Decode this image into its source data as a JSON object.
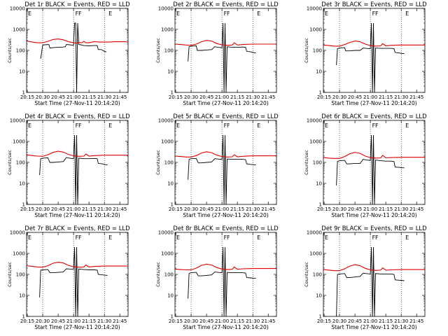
{
  "colors": {
    "events": "#000000",
    "lld": "#e00000",
    "axis": "#000000"
  },
  "axes": {
    "xticks": [
      "20:15",
      "20:30",
      "20:45",
      "21:00",
      "21:15",
      "21:30",
      "21:45"
    ],
    "yticks": [
      "1",
      "10",
      "100",
      "1000",
      "10000"
    ],
    "ylabel": "Counts/sec",
    "xlabel": "Start Time (27-Nov-11 20:14:20)"
  },
  "flags": {
    "left": "E",
    "mid1": "F",
    "mid2": "F",
    "right": "E"
  },
  "chart_data": [
    {
      "type": "line",
      "title": "Det 1r BLACK = Events, RED = LLD",
      "xlim": [
        "20:14:20",
        "21:53:00"
      ],
      "ylim": [
        1,
        10000
      ],
      "yscale": "log",
      "series": [
        {
          "name": "Events",
          "x": [
            "20:14:20",
            "20:20",
            "20:27",
            "20:28",
            "20:30",
            "20:32",
            "20:36",
            "20:37",
            "20:40",
            "20:45",
            "20:50",
            "20:52",
            "20:53",
            "20:56",
            "20:58",
            "21:00",
            "21:01",
            "21:02",
            "21:03",
            "21:04",
            "21:05",
            "21:07",
            "21:10",
            "21:15",
            "21:20",
            "21:23",
            "21:24",
            "21:27",
            "21:30",
            "21:32",
            "21:34"
          ],
          "values": [
            null,
            null,
            null,
            40,
            180,
            185,
            190,
            130,
            135,
            140,
            145,
            150,
            190,
            185,
            180,
            175,
            2000,
            2000,
            1,
            2000,
            190,
            185,
            170,
            165,
            170,
            170,
            110,
            110,
            90,
            85,
            null
          ]
        },
        {
          "name": "LLD",
          "x": [
            "20:14:20",
            "20:20",
            "20:25",
            "20:30",
            "20:35",
            "20:40",
            "20:45",
            "20:50",
            "20:55",
            "21:00",
            "21:03",
            "21:05",
            "21:08",
            "21:10",
            "21:12",
            "21:15",
            "21:20",
            "21:25",
            "21:30",
            "21:35",
            "21:40",
            "21:45",
            "21:50",
            "21:53"
          ],
          "values": [
            280,
            250,
            230,
            230,
            270,
            330,
            350,
            320,
            260,
            230,
            220,
            240,
            230,
            270,
            230,
            230,
            260,
            250,
            250,
            250,
            260,
            260,
            260,
            250
          ]
        }
      ]
    },
    {
      "type": "line",
      "title": "Det 2r BLACK = Events, RED = LLD",
      "xlim": [
        "20:14:20",
        "21:53:00"
      ],
      "ylim": [
        1,
        10000
      ],
      "yscale": "log",
      "series": [
        {
          "name": "Events",
          "x": [
            "20:27",
            "20:28",
            "20:30",
            "20:35",
            "20:36",
            "20:40",
            "20:45",
            "20:50",
            "20:53",
            "20:56",
            "21:00",
            "21:01",
            "21:02",
            "21:03",
            "21:04",
            "21:05",
            "21:10",
            "21:15",
            "21:20",
            "21:23",
            "21:24",
            "21:28",
            "21:30",
            "21:33"
          ],
          "values": [
            30,
            150,
            160,
            165,
            100,
            100,
            105,
            110,
            150,
            140,
            135,
            2000,
            1,
            2000,
            1,
            150,
            140,
            140,
            145,
            140,
            90,
            85,
            80,
            75
          ]
        },
        {
          "name": "LLD",
          "x": [
            "20:14:20",
            "20:20",
            "20:25",
            "20:30",
            "20:35",
            "20:40",
            "20:45",
            "20:50",
            "20:55",
            "21:00",
            "21:05",
            "21:10",
            "21:12",
            "21:15",
            "21:20",
            "21:30",
            "21:40",
            "21:53"
          ],
          "values": [
            200,
            190,
            180,
            175,
            200,
            260,
            300,
            280,
            210,
            185,
            175,
            180,
            230,
            180,
            190,
            200,
            200,
            200
          ]
        }
      ]
    },
    {
      "type": "line",
      "title": "Det 3r BLACK = Events, RED = LLD",
      "xlim": [
        "20:14:20",
        "21:53:00"
      ],
      "ylim": [
        1,
        10000
      ],
      "yscale": "log",
      "series": [
        {
          "name": "Events",
          "x": [
            "20:27",
            "20:28",
            "20:30",
            "20:35",
            "20:36",
            "20:40",
            "20:45",
            "20:50",
            "20:53",
            "20:56",
            "21:00",
            "21:01",
            "21:02",
            "21:03",
            "21:04",
            "21:05",
            "21:10",
            "21:15",
            "21:20",
            "21:23",
            "21:24",
            "21:28",
            "21:30",
            "21:33"
          ],
          "values": [
            20,
            120,
            130,
            135,
            95,
            95,
            100,
            100,
            130,
            125,
            120,
            2000,
            1,
            2000,
            1,
            130,
            125,
            125,
            125,
            120,
            80,
            75,
            72,
            70
          ]
        },
        {
          "name": "LLD",
          "x": [
            "20:14:20",
            "20:20",
            "20:25",
            "20:30",
            "20:35",
            "20:40",
            "20:45",
            "20:50",
            "20:55",
            "21:00",
            "21:05",
            "21:10",
            "21:12",
            "21:15",
            "21:20",
            "21:30",
            "21:40",
            "21:53"
          ],
          "values": [
            180,
            170,
            160,
            160,
            190,
            240,
            280,
            260,
            200,
            170,
            160,
            165,
            210,
            165,
            175,
            180,
            180,
            180
          ]
        }
      ]
    },
    {
      "type": "line",
      "title": "Det 4r BLACK = Events, RED = LLD",
      "xlim": [
        "20:14:20",
        "21:53:00"
      ],
      "ylim": [
        1,
        10000
      ],
      "yscale": "log",
      "series": [
        {
          "name": "Events",
          "x": [
            "20:27",
            "20:28",
            "20:30",
            "20:35",
            "20:37",
            "20:40",
            "20:45",
            "20:50",
            "20:53",
            "20:56",
            "21:00",
            "21:01",
            "21:02",
            "21:03",
            "21:04",
            "21:05",
            "21:10",
            "21:15",
            "21:20",
            "21:23",
            "21:24",
            "21:28",
            "21:30",
            "21:33"
          ],
          "values": [
            25,
            150,
            160,
            165,
            100,
            100,
            105,
            110,
            170,
            160,
            150,
            2000,
            1,
            2000,
            1,
            160,
            150,
            150,
            155,
            150,
            90,
            85,
            80,
            75
          ]
        },
        {
          "name": "LLD",
          "x": [
            "20:14:20",
            "20:20",
            "20:25",
            "20:30",
            "20:35",
            "20:40",
            "20:45",
            "20:50",
            "20:55",
            "21:00",
            "21:05",
            "21:10",
            "21:12",
            "21:15",
            "21:20",
            "21:30",
            "21:40",
            "21:53"
          ],
          "values": [
            230,
            210,
            200,
            195,
            230,
            300,
            340,
            310,
            240,
            205,
            195,
            200,
            250,
            200,
            210,
            220,
            220,
            220
          ]
        }
      ]
    },
    {
      "type": "line",
      "title": "Det 5r BLACK = Events, RED = LLD",
      "xlim": [
        "20:14:20",
        "21:53:00"
      ],
      "ylim": [
        1,
        10000
      ],
      "yscale": "log",
      "series": [
        {
          "name": "Events",
          "x": [
            "20:27",
            "20:28",
            "20:30",
            "20:35",
            "20:37",
            "20:40",
            "20:45",
            "20:50",
            "20:53",
            "20:56",
            "21:00",
            "21:01",
            "21:02",
            "21:03",
            "21:04",
            "21:05",
            "21:10",
            "21:15",
            "21:20",
            "21:23",
            "21:24",
            "21:28",
            "21:30",
            "21:33"
          ],
          "values": [
            15,
            140,
            150,
            155,
            95,
            95,
            100,
            105,
            150,
            145,
            140,
            2000,
            1,
            2000,
            1,
            145,
            140,
            140,
            140,
            135,
            85,
            80,
            78,
            75
          ]
        },
        {
          "name": "LLD",
          "x": [
            "20:14:20",
            "20:20",
            "20:25",
            "20:30",
            "20:35",
            "20:40",
            "20:45",
            "20:50",
            "20:55",
            "21:00",
            "21:05",
            "21:10",
            "21:12",
            "21:15",
            "21:20",
            "21:30",
            "21:40",
            "21:53"
          ],
          "values": [
            200,
            190,
            180,
            180,
            210,
            280,
            320,
            290,
            220,
            190,
            180,
            185,
            230,
            185,
            195,
            205,
            205,
            205
          ]
        }
      ]
    },
    {
      "type": "line",
      "title": "Det 6r BLACK = Events, RED = LLD",
      "xlim": [
        "20:14:20",
        "21:53:00"
      ],
      "ylim": [
        1,
        10000
      ],
      "yscale": "log",
      "series": [
        {
          "name": "Events",
          "x": [
            "20:27",
            "20:28",
            "20:30",
            "20:35",
            "20:37",
            "20:40",
            "20:45",
            "20:50",
            "20:53",
            "20:56",
            "21:00",
            "21:01",
            "21:02",
            "21:03",
            "21:04",
            "21:05",
            "21:10",
            "21:15",
            "21:20",
            "21:23",
            "21:24",
            "21:28",
            "21:30",
            "21:33"
          ],
          "values": [
            8,
            110,
            120,
            125,
            85,
            85,
            90,
            90,
            140,
            130,
            125,
            2000,
            1,
            2000,
            1,
            130,
            120,
            115,
            115,
            110,
            60,
            58,
            56,
            55
          ]
        },
        {
          "name": "LLD",
          "x": [
            "20:14:20",
            "20:20",
            "20:25",
            "20:30",
            "20:35",
            "20:40",
            "20:45",
            "20:50",
            "20:55",
            "21:00",
            "21:05",
            "21:10",
            "21:12",
            "21:15",
            "21:20",
            "21:30",
            "21:40",
            "21:53"
          ],
          "values": [
            170,
            160,
            155,
            155,
            190,
            260,
            300,
            270,
            200,
            170,
            160,
            165,
            215,
            165,
            170,
            175,
            175,
            175
          ]
        }
      ]
    },
    {
      "type": "line",
      "title": "Det 7r BLACK = Events, RED = LLD",
      "xlim": [
        "20:14:20",
        "21:53:00"
      ],
      "ylim": [
        1,
        10000
      ],
      "yscale": "log",
      "series": [
        {
          "name": "Events",
          "x": [
            "20:27",
            "20:28",
            "20:30",
            "20:35",
            "20:37",
            "20:40",
            "20:45",
            "20:50",
            "20:53",
            "20:56",
            "21:00",
            "21:01",
            "21:02",
            "21:03",
            "21:04",
            "21:05",
            "21:10",
            "21:15",
            "21:20",
            "21:23",
            "21:24",
            "21:28",
            "21:30",
            "21:33"
          ],
          "values": [
            8,
            160,
            165,
            170,
            120,
            120,
            125,
            130,
            185,
            180,
            175,
            2000,
            1,
            2000,
            1,
            180,
            170,
            165,
            165,
            160,
            100,
            95,
            92,
            90
          ]
        },
        {
          "name": "LLD",
          "x": [
            "20:14:20",
            "20:20",
            "20:25",
            "20:30",
            "20:35",
            "20:40",
            "20:45",
            "20:50",
            "20:55",
            "21:00",
            "21:05",
            "21:10",
            "21:12",
            "21:15",
            "21:20",
            "21:30",
            "21:40",
            "21:53"
          ],
          "values": [
            260,
            240,
            225,
            220,
            260,
            340,
            380,
            350,
            270,
            230,
            220,
            225,
            280,
            225,
            240,
            250,
            250,
            250
          ]
        }
      ]
    },
    {
      "type": "line",
      "title": "Det 8r BLACK = Events, RED = LLD",
      "xlim": [
        "20:14:20",
        "21:53:00"
      ],
      "ylim": [
        1,
        10000
      ],
      "yscale": "log",
      "series": [
        {
          "name": "Events",
          "x": [
            "20:27",
            "20:28",
            "20:30",
            "20:35",
            "20:37",
            "20:40",
            "20:45",
            "20:50",
            "20:53",
            "20:56",
            "21:00",
            "21:01",
            "21:02",
            "21:03",
            "21:04",
            "21:05",
            "21:10",
            "21:15",
            "21:20",
            "21:23",
            "21:24",
            "21:28",
            "21:30",
            "21:33"
          ],
          "values": [
            7,
            110,
            120,
            125,
            85,
            85,
            90,
            95,
            130,
            125,
            120,
            2000,
            1,
            2000,
            1,
            125,
            120,
            120,
            120,
            115,
            70,
            68,
            66,
            65
          ]
        },
        {
          "name": "LLD",
          "x": [
            "20:14:20",
            "20:20",
            "20:25",
            "20:30",
            "20:35",
            "20:40",
            "20:45",
            "20:50",
            "20:55",
            "21:00",
            "21:05",
            "21:10",
            "21:12",
            "21:15",
            "21:20",
            "21:30",
            "21:40",
            "21:53"
          ],
          "values": [
            180,
            170,
            165,
            165,
            200,
            270,
            310,
            280,
            210,
            180,
            170,
            175,
            225,
            175,
            185,
            190,
            190,
            190
          ]
        }
      ]
    },
    {
      "type": "line",
      "title": "Det 9r BLACK = Events, RED = LLD",
      "xlim": [
        "20:14:20",
        "21:53:00"
      ],
      "ylim": [
        1,
        10000
      ],
      "yscale": "log",
      "series": [
        {
          "name": "Events",
          "x": [
            "20:27",
            "20:28",
            "20:30",
            "20:35",
            "20:37",
            "20:40",
            "20:45",
            "20:50",
            "20:53",
            "20:56",
            "21:00",
            "21:01",
            "21:02",
            "21:03",
            "21:04",
            "21:05",
            "21:10",
            "21:15",
            "21:20",
            "21:23",
            "21:24",
            "21:28",
            "21:30",
            "21:33"
          ],
          "values": [
            1,
            100,
            105,
            110,
            70,
            70,
            75,
            80,
            115,
            110,
            105,
            2000,
            1,
            2000,
            1,
            110,
            105,
            105,
            105,
            100,
            55,
            53,
            52,
            50
          ]
        },
        {
          "name": "LLD",
          "x": [
            "20:14:20",
            "20:20",
            "20:25",
            "20:30",
            "20:35",
            "20:40",
            "20:45",
            "20:50",
            "20:55",
            "21:00",
            "21:05",
            "21:10",
            "21:12",
            "21:15",
            "21:20",
            "21:30",
            "21:40",
            "21:53"
          ],
          "values": [
            170,
            160,
            150,
            150,
            185,
            250,
            290,
            260,
            195,
            165,
            155,
            160,
            205,
            160,
            165,
            170,
            170,
            170
          ]
        }
      ]
    }
  ]
}
